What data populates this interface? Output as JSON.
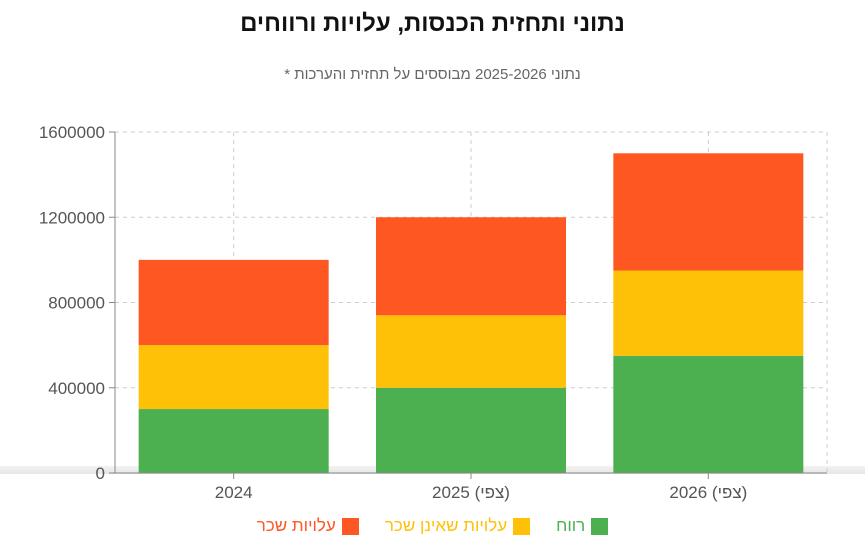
{
  "chart_data": {
    "type": "bar",
    "stacked": true,
    "title": "נתוני ותחזית הכנסות, עלויות ורווחים",
    "subtitle": "נתוני 2025-2026 מבוססים על תחזית והערכות *",
    "categories": [
      "2024",
      "2025 (צפי)",
      "2026 (צפי)"
    ],
    "series": [
      {
        "name": "רווח",
        "color": "#4caf50",
        "values": [
          300000,
          400000,
          550000
        ]
      },
      {
        "name": "עלויות שאינן שכר",
        "color": "#ffc107",
        "values": [
          300000,
          340000,
          400000
        ]
      },
      {
        "name": "עלויות שכר",
        "color": "#ff5722",
        "values": [
          400000,
          460000,
          550000
        ]
      }
    ],
    "ylim": [
      0,
      1600000
    ],
    "yticks": [
      "0",
      "400000",
      "800000",
      "1200000",
      "1600000"
    ],
    "grid": true,
    "legend_position": "bottom"
  }
}
